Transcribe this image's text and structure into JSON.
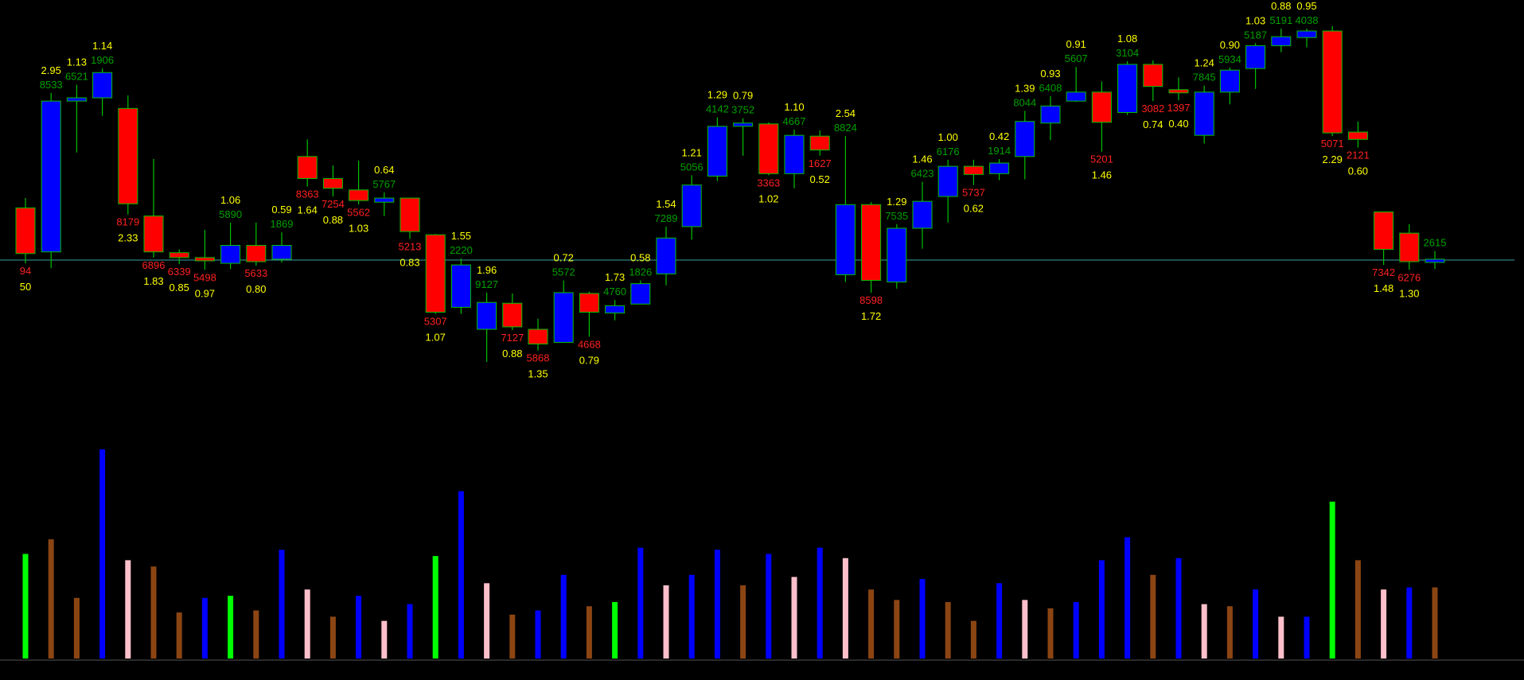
{
  "colors": {
    "background": "#000000",
    "up_body": "#0000ff",
    "down_body": "#ff0000",
    "body_border": "#00c000",
    "wick": "#00c000",
    "reference_line": "#3aa0a0",
    "label_yellow": "#ffff00",
    "label_green": "#00a000",
    "label_red": "#ff2020",
    "vol_blue": "#0000ff",
    "vol_brown": "#8b4513",
    "vol_pink": "#ffc0cb",
    "vol_green": "#00ff00"
  },
  "chart_data": {
    "type": "candlestick",
    "title": "",
    "xlabel": "",
    "ylabel": "",
    "reference_line": 10,
    "ylim": [
      -10.3,
      38.0
    ],
    "candles": [
      {
        "open": 16.4,
        "close": 10.8,
        "high": 17.6,
        "low": 9.6,
        "dir": "down",
        "num": "94",
        "ratio": "50"
      },
      {
        "open": 11.0,
        "close": 29.5,
        "high": 30.5,
        "low": 9.0,
        "dir": "up",
        "num": "8533",
        "ratio": "2.95"
      },
      {
        "open": 29.5,
        "close": 29.9,
        "high": 31.5,
        "low": 23.2,
        "dir": "up",
        "num": "6521",
        "ratio": "1.13"
      },
      {
        "open": 29.9,
        "close": 33.0,
        "high": 33.5,
        "low": 27.7,
        "dir": "up",
        "num": "1906",
        "ratio": "1.14"
      },
      {
        "open": 28.6,
        "close": 16.9,
        "high": 30.2,
        "low": 15.6,
        "dir": "down",
        "num": "8179",
        "ratio": "2.33"
      },
      {
        "open": 15.4,
        "close": 11.0,
        "high": 22.4,
        "low": 10.3,
        "dir": "down",
        "num": "6896",
        "ratio": "1.83"
      },
      {
        "open": 10.9,
        "close": 10.3,
        "high": 11.3,
        "low": 9.5,
        "dir": "down",
        "num": "6339",
        "ratio": "0.85"
      },
      {
        "open": 10.3,
        "close": 9.9,
        "high": 13.7,
        "low": 8.8,
        "dir": "down",
        "num": "5498",
        "ratio": "0.97"
      },
      {
        "open": 9.6,
        "close": 11.8,
        "high": 14.6,
        "low": 8.9,
        "dir": "up",
        "num": "5890",
        "ratio": "1.06"
      },
      {
        "open": 11.8,
        "close": 9.8,
        "high": 14.6,
        "low": 9.3,
        "dir": "down",
        "num": "5633",
        "ratio": "0.80"
      },
      {
        "open": 10.1,
        "close": 11.8,
        "high": 13.4,
        "low": 9.7,
        "dir": "up",
        "num": "1869",
        "ratio": "0.59"
      },
      {
        "open": 22.7,
        "close": 20.0,
        "high": 24.8,
        "low": 19.0,
        "dir": "down",
        "num": "8363",
        "ratio": "1.64"
      },
      {
        "open": 20.0,
        "close": 18.8,
        "high": 21.6,
        "low": 17.8,
        "dir": "down",
        "num": "7254",
        "ratio": "0.88"
      },
      {
        "open": 18.6,
        "close": 17.3,
        "high": 22.2,
        "low": 16.8,
        "dir": "down",
        "num": "5562",
        "ratio": "1.03"
      },
      {
        "open": 17.1,
        "close": 17.6,
        "high": 18.3,
        "low": 15.4,
        "dir": "up",
        "num": "5767",
        "ratio": "0.64"
      },
      {
        "open": 17.6,
        "close": 13.5,
        "high": 17.6,
        "low": 12.6,
        "dir": "down",
        "num": "5213",
        "ratio": "0.83"
      },
      {
        "open": 13.1,
        "close": 3.6,
        "high": 13.2,
        "low": 3.4,
        "dir": "down",
        "num": "5307",
        "ratio": "1.07"
      },
      {
        "open": 4.2,
        "close": 9.4,
        "high": 10.2,
        "low": 3.4,
        "dir": "up",
        "num": "2220",
        "ratio": "1.55"
      },
      {
        "open": 1.5,
        "close": 4.8,
        "high": 6.0,
        "low": -2.5,
        "dir": "up",
        "num": "9127",
        "ratio": "1.96"
      },
      {
        "open": 4.7,
        "close": 1.8,
        "high": 5.9,
        "low": 1.4,
        "dir": "down",
        "num": "7127",
        "ratio": "0.88"
      },
      {
        "open": 1.5,
        "close": -0.3,
        "high": 2.8,
        "low": -1.1,
        "dir": "down",
        "num": "5868",
        "ratio": "1.35"
      },
      {
        "open": -0.1,
        "close": 6.0,
        "high": 7.5,
        "low": -0.1,
        "dir": "up",
        "num": "5572",
        "ratio": "0.72"
      },
      {
        "open": 5.9,
        "close": 3.6,
        "high": 6.1,
        "low": 0.6,
        "dir": "down",
        "num": "4668",
        "ratio": "0.79"
      },
      {
        "open": 3.5,
        "close": 4.4,
        "high": 5.1,
        "low": 2.6,
        "dir": "up",
        "num": "4760",
        "ratio": "1.73"
      },
      {
        "open": 4.6,
        "close": 7.1,
        "high": 7.5,
        "low": 4.6,
        "dir": "up",
        "num": "1826",
        "ratio": "0.58"
      },
      {
        "open": 8.3,
        "close": 12.7,
        "high": 14.1,
        "low": 6.9,
        "dir": "up",
        "num": "7289",
        "ratio": "1.54"
      },
      {
        "open": 14.1,
        "close": 19.2,
        "high": 20.4,
        "low": 12.5,
        "dir": "up",
        "num": "5056",
        "ratio": "1.21"
      },
      {
        "open": 20.3,
        "close": 26.4,
        "high": 27.5,
        "low": 19.7,
        "dir": "up",
        "num": "4142",
        "ratio": "1.29"
      },
      {
        "open": 26.5,
        "close": 26.8,
        "high": 27.4,
        "low": 22.8,
        "dir": "up",
        "num": "3752",
        "ratio": "0.79"
      },
      {
        "open": 26.7,
        "close": 20.6,
        "high": 26.9,
        "low": 20.4,
        "dir": "down",
        "num": "3363",
        "ratio": "1.02"
      },
      {
        "open": 20.6,
        "close": 25.3,
        "high": 26.0,
        "low": 18.8,
        "dir": "up",
        "num": "4667",
        "ratio": "1.10"
      },
      {
        "open": 25.2,
        "close": 23.5,
        "high": 25.9,
        "low": 22.8,
        "dir": "down",
        "num": "1627",
        "ratio": "0.52"
      },
      {
        "open": 8.2,
        "close": 16.8,
        "high": 25.2,
        "low": 7.3,
        "dir": "up",
        "num": "8824",
        "ratio": "2.54"
      },
      {
        "open": 16.8,
        "close": 7.5,
        "high": 17.1,
        "low": 6.0,
        "dir": "down",
        "num": "8598",
        "ratio": "1.72"
      },
      {
        "open": 7.3,
        "close": 13.9,
        "high": 14.4,
        "low": 6.5,
        "dir": "up",
        "num": "7535",
        "ratio": "1.29"
      },
      {
        "open": 13.9,
        "close": 17.2,
        "high": 19.6,
        "low": 11.4,
        "dir": "up",
        "num": "6423",
        "ratio": "1.46"
      },
      {
        "open": 17.8,
        "close": 21.5,
        "high": 22.3,
        "low": 14.6,
        "dir": "up",
        "num": "6176",
        "ratio": "1.00"
      },
      {
        "open": 21.5,
        "close": 20.5,
        "high": 22.3,
        "low": 19.2,
        "dir": "down",
        "num": "5737",
        "ratio": "0.62"
      },
      {
        "open": 20.6,
        "close": 21.9,
        "high": 22.4,
        "low": 19.8,
        "dir": "up",
        "num": "1914",
        "ratio": "0.42"
      },
      {
        "open": 22.7,
        "close": 27.0,
        "high": 28.3,
        "low": 19.9,
        "dir": "up",
        "num": "8044",
        "ratio": "1.39"
      },
      {
        "open": 26.8,
        "close": 28.9,
        "high": 30.1,
        "low": 24.7,
        "dir": "up",
        "num": "6408",
        "ratio": "0.93"
      },
      {
        "open": 29.5,
        "close": 30.6,
        "high": 33.7,
        "low": 29.4,
        "dir": "up",
        "num": "5607",
        "ratio": "0.91"
      },
      {
        "open": 30.6,
        "close": 26.9,
        "high": 31.9,
        "low": 23.3,
        "dir": "down",
        "num": "5201",
        "ratio": "1.46"
      },
      {
        "open": 28.1,
        "close": 34.0,
        "high": 34.4,
        "low": 27.8,
        "dir": "up",
        "num": "3104",
        "ratio": "1.08"
      },
      {
        "open": 34.0,
        "close": 31.3,
        "high": 34.5,
        "low": 29.5,
        "dir": "down",
        "num": "3082",
        "ratio": "0.74"
      },
      {
        "open": 30.9,
        "close": 30.6,
        "high": 32.4,
        "low": 29.6,
        "dir": "down",
        "num": "1397",
        "ratio": "0.40"
      },
      {
        "open": 25.3,
        "close": 30.6,
        "high": 31.4,
        "low": 24.3,
        "dir": "up",
        "num": "7845",
        "ratio": "1.24"
      },
      {
        "open": 30.6,
        "close": 33.3,
        "high": 33.6,
        "low": 29.1,
        "dir": "up",
        "num": "5934",
        "ratio": "0.90"
      },
      {
        "open": 33.5,
        "close": 36.3,
        "high": 36.6,
        "low": 31.0,
        "dir": "up",
        "num": "5187",
        "ratio": "1.03"
      },
      {
        "open": 36.3,
        "close": 37.4,
        "high": 38.4,
        "low": 35.5,
        "dir": "up",
        "num": "5191",
        "ratio": "0.88"
      },
      {
        "open": 37.3,
        "close": 38.1,
        "high": 38.4,
        "low": 36.1,
        "dir": "up",
        "num": "4038",
        "ratio": "0.95"
      },
      {
        "open": 38.1,
        "close": 25.6,
        "high": 38.7,
        "low": 25.2,
        "dir": "down",
        "num": "5071",
        "ratio": "2.29"
      },
      {
        "open": 25.7,
        "close": 24.8,
        "high": 27.0,
        "low": 23.8,
        "dir": "down",
        "num": "2121",
        "ratio": "0.60"
      },
      {
        "open": 15.9,
        "close": 11.3,
        "high": 15.9,
        "low": 9.4,
        "dir": "down",
        "num": "7342",
        "ratio": "1.48"
      },
      {
        "open": 13.3,
        "close": 9.8,
        "high": 14.4,
        "low": 8.8,
        "dir": "down",
        "num": "6276",
        "ratio": "1.30"
      },
      {
        "open": 9.8,
        "close": 10.1,
        "high": 11.1,
        "low": 8.9,
        "dir": "up",
        "num": "2615",
        "ratio": ""
      }
    ],
    "volume": {
      "ylim": [
        0,
        100
      ],
      "bars": [
        {
          "value": 50,
          "color": "vol_green"
        },
        {
          "value": 57,
          "color": "vol_brown"
        },
        {
          "value": 29,
          "color": "vol_brown"
        },
        {
          "value": 100,
          "color": "vol_blue"
        },
        {
          "value": 47,
          "color": "vol_pink"
        },
        {
          "value": 44,
          "color": "vol_brown"
        },
        {
          "value": 22,
          "color": "vol_brown"
        },
        {
          "value": 29,
          "color": "vol_blue"
        },
        {
          "value": 30,
          "color": "vol_green"
        },
        {
          "value": 23,
          "color": "vol_brown"
        },
        {
          "value": 52,
          "color": "vol_blue"
        },
        {
          "value": 33,
          "color": "vol_pink"
        },
        {
          "value": 20,
          "color": "vol_brown"
        },
        {
          "value": 30,
          "color": "vol_blue"
        },
        {
          "value": 18,
          "color": "vol_pink"
        },
        {
          "value": 26,
          "color": "vol_blue"
        },
        {
          "value": 49,
          "color": "vol_green"
        },
        {
          "value": 80,
          "color": "vol_blue"
        },
        {
          "value": 36,
          "color": "vol_pink"
        },
        {
          "value": 21,
          "color": "vol_brown"
        },
        {
          "value": 23,
          "color": "vol_blue"
        },
        {
          "value": 40,
          "color": "vol_blue"
        },
        {
          "value": 25,
          "color": "vol_brown"
        },
        {
          "value": 27,
          "color": "vol_green"
        },
        {
          "value": 53,
          "color": "vol_blue"
        },
        {
          "value": 35,
          "color": "vol_pink"
        },
        {
          "value": 40,
          "color": "vol_blue"
        },
        {
          "value": 52,
          "color": "vol_blue"
        },
        {
          "value": 35,
          "color": "vol_brown"
        },
        {
          "value": 50,
          "color": "vol_blue"
        },
        {
          "value": 39,
          "color": "vol_pink"
        },
        {
          "value": 53,
          "color": "vol_blue"
        },
        {
          "value": 48,
          "color": "vol_pink"
        },
        {
          "value": 33,
          "color": "vol_brown"
        },
        {
          "value": 28,
          "color": "vol_brown"
        },
        {
          "value": 38,
          "color": "vol_blue"
        },
        {
          "value": 27,
          "color": "vol_brown"
        },
        {
          "value": 18,
          "color": "vol_brown"
        },
        {
          "value": 36,
          "color": "vol_blue"
        },
        {
          "value": 28,
          "color": "vol_pink"
        },
        {
          "value": 24,
          "color": "vol_brown"
        },
        {
          "value": 27,
          "color": "vol_blue"
        },
        {
          "value": 47,
          "color": "vol_blue"
        },
        {
          "value": 58,
          "color": "vol_blue"
        },
        {
          "value": 40,
          "color": "vol_brown"
        },
        {
          "value": 48,
          "color": "vol_blue"
        },
        {
          "value": 26,
          "color": "vol_pink"
        },
        {
          "value": 25,
          "color": "vol_brown"
        },
        {
          "value": 33,
          "color": "vol_blue"
        },
        {
          "value": 20,
          "color": "vol_pink"
        },
        {
          "value": 20,
          "color": "vol_blue"
        },
        {
          "value": 75,
          "color": "vol_green"
        },
        {
          "value": 47,
          "color": "vol_brown"
        },
        {
          "value": 33,
          "color": "vol_pink"
        },
        {
          "value": 34,
          "color": "vol_blue"
        },
        {
          "value": 34,
          "color": "vol_brown"
        }
      ]
    }
  }
}
